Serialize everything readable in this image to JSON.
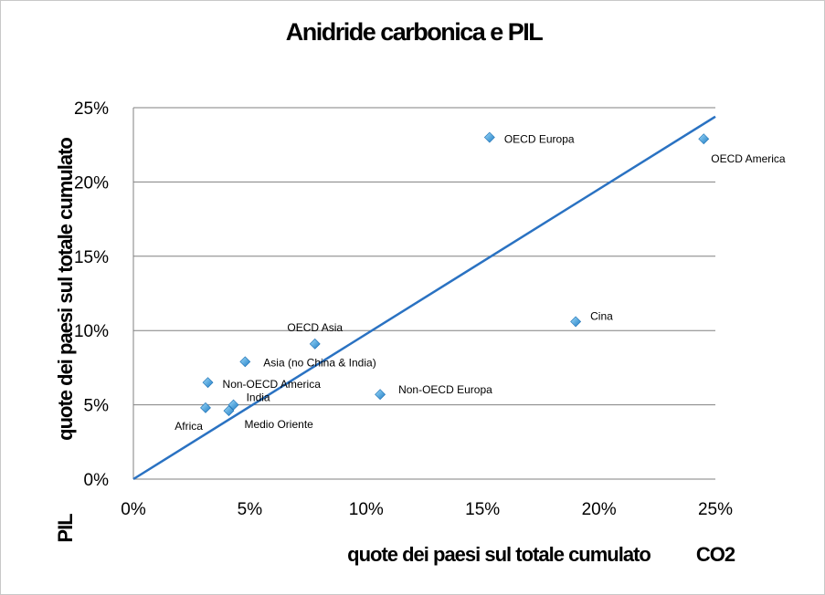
{
  "chart_data": {
    "type": "scatter",
    "title": "Anidride carbonica e PIL",
    "xlabel": "quote dei paesi sul totale cumulato",
    "xlabel_suffix": "CO2",
    "ylabel": "quote dei paesi sul totale cumulato",
    "ylabel_suffix": "PIL",
    "xlim": [
      0,
      25
    ],
    "ylim": [
      0,
      25
    ],
    "x_ticks": [
      "0%",
      "5%",
      "10%",
      "15%",
      "20%",
      "25%"
    ],
    "y_ticks": [
      "0%",
      "5%",
      "10%",
      "15%",
      "20%",
      "25%"
    ],
    "grid": "horizontal",
    "points": [
      {
        "label": "OECD Europa",
        "x": 15.3,
        "y": 23.0
      },
      {
        "label": "OECD America",
        "x": 24.5,
        "y": 22.9
      },
      {
        "label": "Cina",
        "x": 19.0,
        "y": 10.6
      },
      {
        "label": "OECD Asia",
        "x": 7.8,
        "y": 9.1
      },
      {
        "label": "Asia (no China & India)",
        "x": 4.8,
        "y": 7.9
      },
      {
        "label": "Non-OECD America",
        "x": 3.2,
        "y": 6.5
      },
      {
        "label": "Non-OECD Europa",
        "x": 10.6,
        "y": 5.7
      },
      {
        "label": "India",
        "x": 4.3,
        "y": 5.0
      },
      {
        "label": "Africa",
        "x": 3.1,
        "y": 4.8
      },
      {
        "label": "Medio Oriente",
        "x": 4.1,
        "y": 4.6
      }
    ],
    "trendline": {
      "x": [
        0,
        25
      ],
      "y": [
        0,
        24.4
      ]
    },
    "colors": {
      "marker": "#2a8fd0",
      "line": "#2a72c2",
      "grid": "#808080"
    }
  }
}
